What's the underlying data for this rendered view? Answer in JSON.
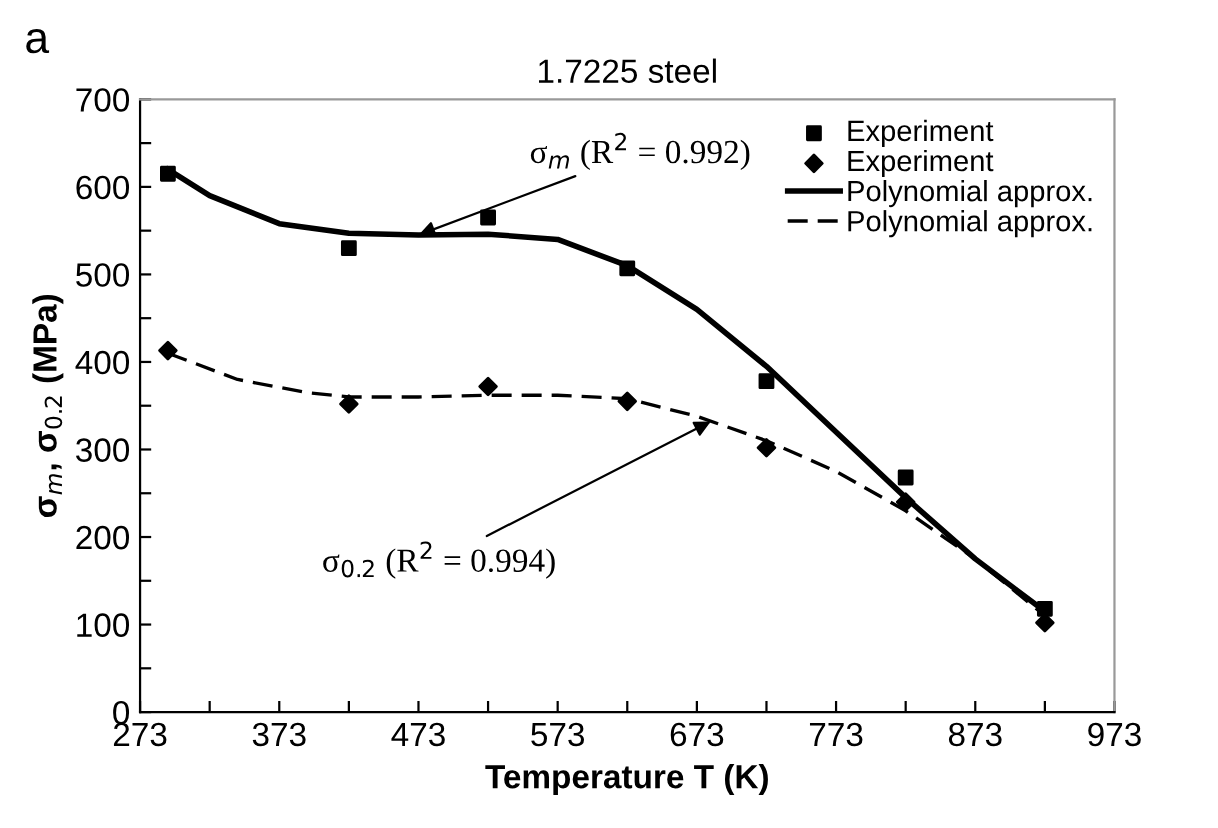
{
  "chart_data": {
    "type": "scatter",
    "title": "1.7225 steel",
    "xlabel": "Temperature T (K)",
    "ylabel": "σ$_{m}$, σ$_{0.2}$ (MPa)",
    "xlim": [
      273,
      973
    ],
    "ylim": [
      0,
      700
    ],
    "xticks": [
      273,
      {
        "value": 323,
        "label": null
      },
      373,
      {
        "value": 423,
        "label": null
      },
      473,
      {
        "value": 523,
        "label": null
      },
      573,
      {
        "value": 623,
        "label": null
      },
      673,
      {
        "value": 723,
        "label": null
      },
      773,
      {
        "value": 823,
        "label": null
      },
      873,
      {
        "value": 923,
        "label": null
      },
      973
    ],
    "yticks": [
      0,
      {
        "value": 50,
        "label": null
      },
      100,
      {
        "value": 150,
        "label": null
      },
      200,
      {
        "value": 250,
        "label": null
      },
      300,
      {
        "value": 350,
        "label": null
      },
      400,
      {
        "value": 450,
        "label": null
      },
      500,
      {
        "value": 550,
        "label": null
      },
      600,
      {
        "value": 650,
        "label": null
      },
      700
    ],
    "grid": false,
    "legend": "top right",
    "annotations": [
      "a",
      {
        "text": "σ$_{m}$ (R$^{2}$ = 0.992)",
        "x": 473,
        "y": 545
      },
      {
        "text": "σ$_{0.2}$ (R$^{2}$ = 0.994)",
        "x": 683,
        "y": 332
      }
    ],
    "series": [
      {
        "name": "Experiment",
        "marker": "square",
        "color": "#000000",
        "x": [
          293,
          423,
          523,
          623,
          723,
          823,
          923
        ],
        "values": [
          615,
          530,
          565,
          507,
          378,
          268,
          118
        ]
      },
      {
        "name": "Experiment",
        "marker": "diamond",
        "color": "#000000",
        "x": [
          293,
          423,
          523,
          623,
          723,
          823,
          923
        ],
        "values": [
          413,
          352,
          372,
          355,
          302,
          240,
          102
        ]
      },
      {
        "name": "Polynomial approx.",
        "type": "line",
        "line_style": "solid",
        "marker": "none",
        "color": "#000000",
        "x": [
          293,
          323,
          373,
          423,
          473,
          523,
          573,
          623,
          673,
          723,
          773,
          823,
          873,
          923
        ],
        "values": [
          620,
          590,
          558,
          547,
          545,
          546,
          540,
          510,
          460,
          395,
          320,
          245,
          175,
          115
        ]
      },
      {
        "name": "Polynomial approx.",
        "type": "line",
        "line_style": "dashed",
        "marker": "none",
        "color": "#000000",
        "x": [
          293,
          343,
          393,
          423,
          473,
          523,
          573,
          623,
          673,
          723,
          773,
          823,
          873,
          923
        ],
        "values": [
          410,
          380,
          365,
          360,
          360,
          362,
          362,
          358,
          338,
          310,
          275,
          230,
          175,
          110
        ]
      }
    ]
  }
}
